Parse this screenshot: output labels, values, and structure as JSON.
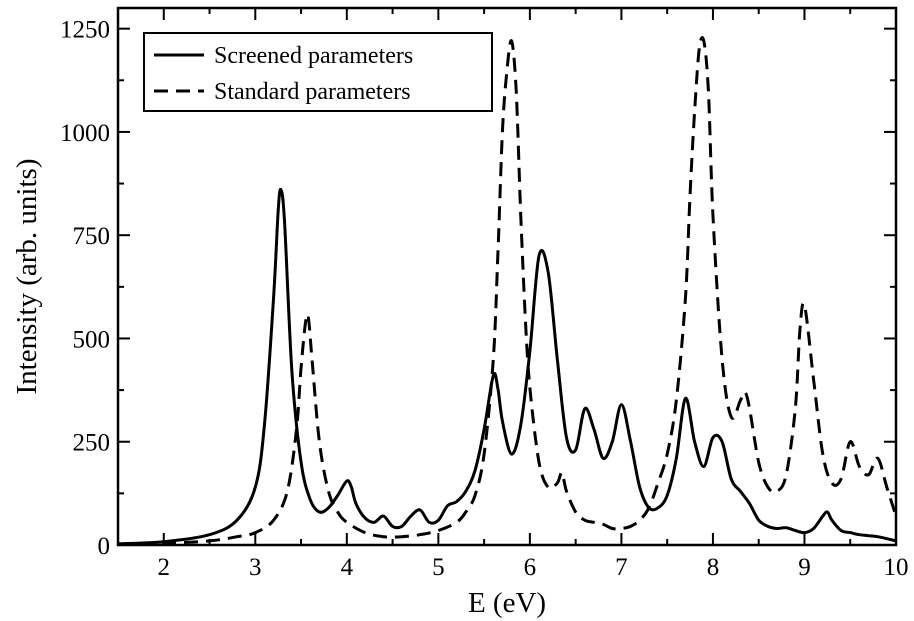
{
  "chart_data": {
    "type": "line",
    "xlabel": "E (eV)",
    "ylabel": "Intensity (arb. units)",
    "xlim": [
      1.5,
      10
    ],
    "ylim": [
      0,
      1300
    ],
    "xticks": [
      "2",
      "3",
      "4",
      "5",
      "6",
      "7",
      "8",
      "9",
      "10"
    ],
    "yticks": [
      "0",
      "250",
      "500",
      "750",
      "1000",
      "1250"
    ],
    "legend_position": "top-left",
    "series": [
      {
        "name": "Screened parameters",
        "style": "solid",
        "color": "#000000",
        "x": [
          1.5,
          2.0,
          2.5,
          2.8,
          3.0,
          3.1,
          3.2,
          3.25,
          3.28,
          3.32,
          3.4,
          3.5,
          3.6,
          3.7,
          3.8,
          3.9,
          4.0,
          4.05,
          4.1,
          4.2,
          4.3,
          4.4,
          4.5,
          4.6,
          4.7,
          4.8,
          4.9,
          5.0,
          5.1,
          5.2,
          5.3,
          5.4,
          5.5,
          5.6,
          5.65,
          5.7,
          5.8,
          5.9,
          6.0,
          6.1,
          6.2,
          6.3,
          6.4,
          6.5,
          6.6,
          6.7,
          6.8,
          6.9,
          7.0,
          7.1,
          7.2,
          7.3,
          7.4,
          7.5,
          7.6,
          7.7,
          7.8,
          7.9,
          8.0,
          8.1,
          8.2,
          8.3,
          8.4,
          8.5,
          8.6,
          8.7,
          8.8,
          8.9,
          9.0,
          9.1,
          9.2,
          9.25,
          9.3,
          9.4,
          9.5,
          9.6,
          9.8,
          10.0
        ],
        "y": [
          3,
          8,
          25,
          60,
          140,
          290,
          600,
          810,
          860,
          780,
          420,
          200,
          110,
          80,
          90,
          120,
          155,
          140,
          100,
          65,
          55,
          70,
          45,
          45,
          70,
          85,
          55,
          60,
          95,
          105,
          130,
          180,
          280,
          410,
          380,
          300,
          220,
          290,
          470,
          700,
          660,
          450,
          260,
          230,
          330,
          280,
          210,
          250,
          340,
          250,
          140,
          90,
          90,
          120,
          210,
          355,
          250,
          190,
          260,
          250,
          160,
          130,
          100,
          60,
          45,
          40,
          42,
          35,
          30,
          40,
          70,
          80,
          60,
          35,
          30,
          25,
          20,
          10
        ]
      },
      {
        "name": "Standard parameters",
        "style": "dashed",
        "color": "#000000",
        "x": [
          1.5,
          2.0,
          2.5,
          2.8,
          3.0,
          3.2,
          3.35,
          3.45,
          3.5,
          3.55,
          3.58,
          3.62,
          3.7,
          3.8,
          3.9,
          4.0,
          4.2,
          4.4,
          4.6,
          4.8,
          5.0,
          5.2,
          5.3,
          5.4,
          5.5,
          5.6,
          5.65,
          5.7,
          5.75,
          5.8,
          5.85,
          5.9,
          5.95,
          6.0,
          6.1,
          6.2,
          6.3,
          6.35,
          6.4,
          6.5,
          6.6,
          6.7,
          6.8,
          6.9,
          7.0,
          7.1,
          7.2,
          7.3,
          7.4,
          7.5,
          7.6,
          7.7,
          7.75,
          7.8,
          7.85,
          7.9,
          7.95,
          8.0,
          8.1,
          8.2,
          8.3,
          8.35,
          8.4,
          8.5,
          8.6,
          8.7,
          8.8,
          8.9,
          8.95,
          9.0,
          9.1,
          9.2,
          9.3,
          9.4,
          9.5,
          9.6,
          9.7,
          9.8,
          9.9,
          10.0
        ],
        "y": [
          2,
          4,
          10,
          20,
          30,
          60,
          130,
          280,
          430,
          540,
          550,
          450,
          250,
          130,
          80,
          55,
          30,
          20,
          20,
          25,
          35,
          55,
          80,
          120,
          220,
          450,
          700,
          1000,
          1150,
          1220,
          1100,
          800,
          550,
          380,
          200,
          140,
          150,
          175,
          130,
          80,
          60,
          55,
          50,
          40,
          40,
          45,
          60,
          90,
          150,
          220,
          350,
          600,
          850,
          1050,
          1200,
          1220,
          1100,
          800,
          450,
          310,
          350,
          370,
          330,
          200,
          140,
          130,
          170,
          330,
          520,
          580,
          400,
          220,
          150,
          160,
          250,
          190,
          170,
          210,
          140,
          70
        ]
      }
    ]
  }
}
